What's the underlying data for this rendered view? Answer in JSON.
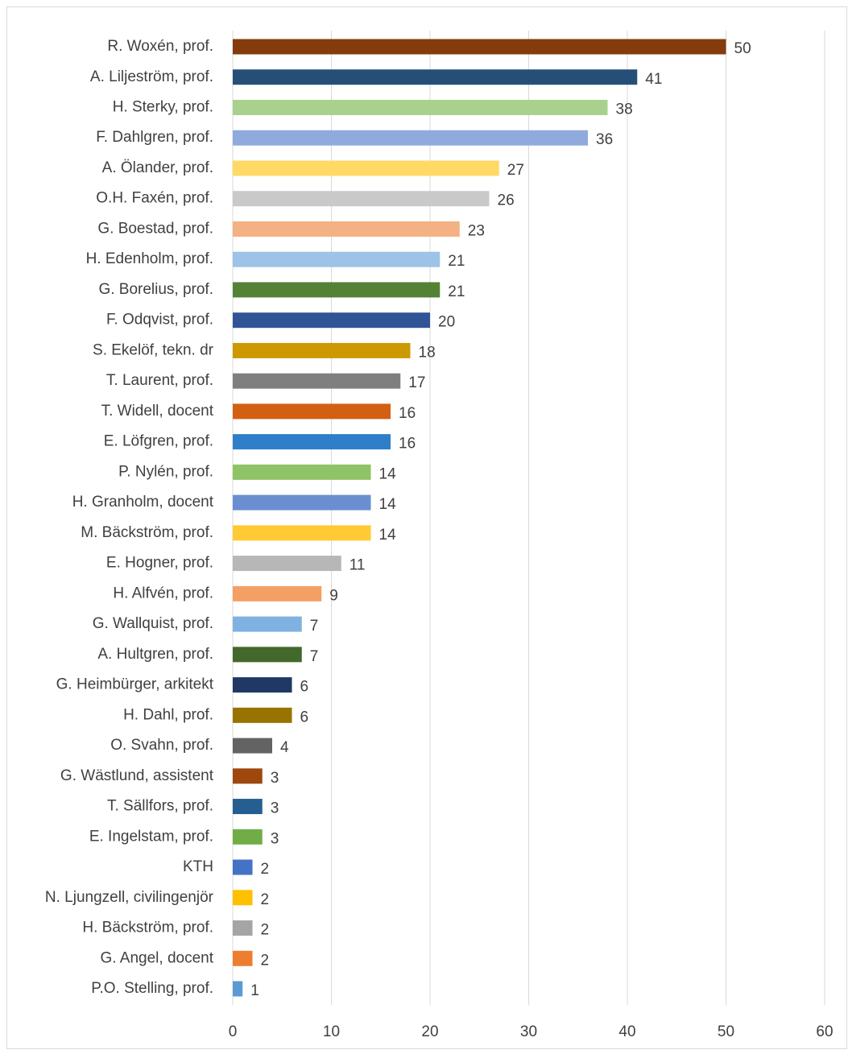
{
  "chart_data": {
    "type": "hbar",
    "categories": [
      "R. Woxén, prof.",
      "A. Liljeström, prof.",
      "H. Sterky, prof.",
      "F. Dahlgren, prof.",
      "A. Ölander, prof.",
      "O.H. Faxén, prof.",
      "G. Boestad, prof.",
      "H. Edenholm, prof.",
      "G. Borelius, prof.",
      "F. Odqvist, prof.",
      "S. Ekelöf, tekn. dr",
      "T. Laurent, prof.",
      "T. Widell, docent",
      "E. Löfgren, prof.",
      "P. Nylén, prof.",
      "H. Granholm, docent",
      "M. Bäckström, prof.",
      "E. Hogner, prof.",
      "H. Alfvén, prof.",
      "G. Wallquist, prof.",
      "A. Hultgren, prof.",
      "G. Heimbürger, arkitekt",
      "H. Dahl, prof.",
      "O. Svahn, prof.",
      "G. Wästlund, assistent",
      "T. Sällfors, prof.",
      "E. Ingelstam, prof.",
      "KTH",
      "N. Ljungzell, civilingenjör",
      "H. Bäckström, prof.",
      "G. Angel, docent",
      "P.O. Stelling, prof."
    ],
    "values": [
      50,
      41,
      38,
      36,
      27,
      26,
      23,
      21,
      21,
      20,
      18,
      17,
      16,
      16,
      14,
      14,
      14,
      11,
      9,
      7,
      7,
      6,
      6,
      4,
      3,
      3,
      3,
      2,
      2,
      2,
      2,
      1
    ],
    "colors": [
      "#843C0C",
      "#264F78",
      "#A9D18E",
      "#8FAADC",
      "#FFD966",
      "#C9C9C9",
      "#F4B183",
      "#9DC3E6",
      "#548235",
      "#2F5597",
      "#CC9900",
      "#7F7F7F",
      "#D35F12",
      "#2E7EC9",
      "#8EC466",
      "#6A8FD1",
      "#FFCA33",
      "#B7B7B7",
      "#F4A064",
      "#7FB2E0",
      "#43682B",
      "#203864",
      "#997300",
      "#636363",
      "#9E480E",
      "#255E91",
      "#70AD47",
      "#4472C4",
      "#FFC000",
      "#A5A5A5",
      "#ED7D31",
      "#5B9BD5"
    ],
    "xlim": [
      0,
      60
    ],
    "xticks": [
      0,
      10,
      20,
      30,
      40,
      50,
      60
    ],
    "grid": true
  }
}
